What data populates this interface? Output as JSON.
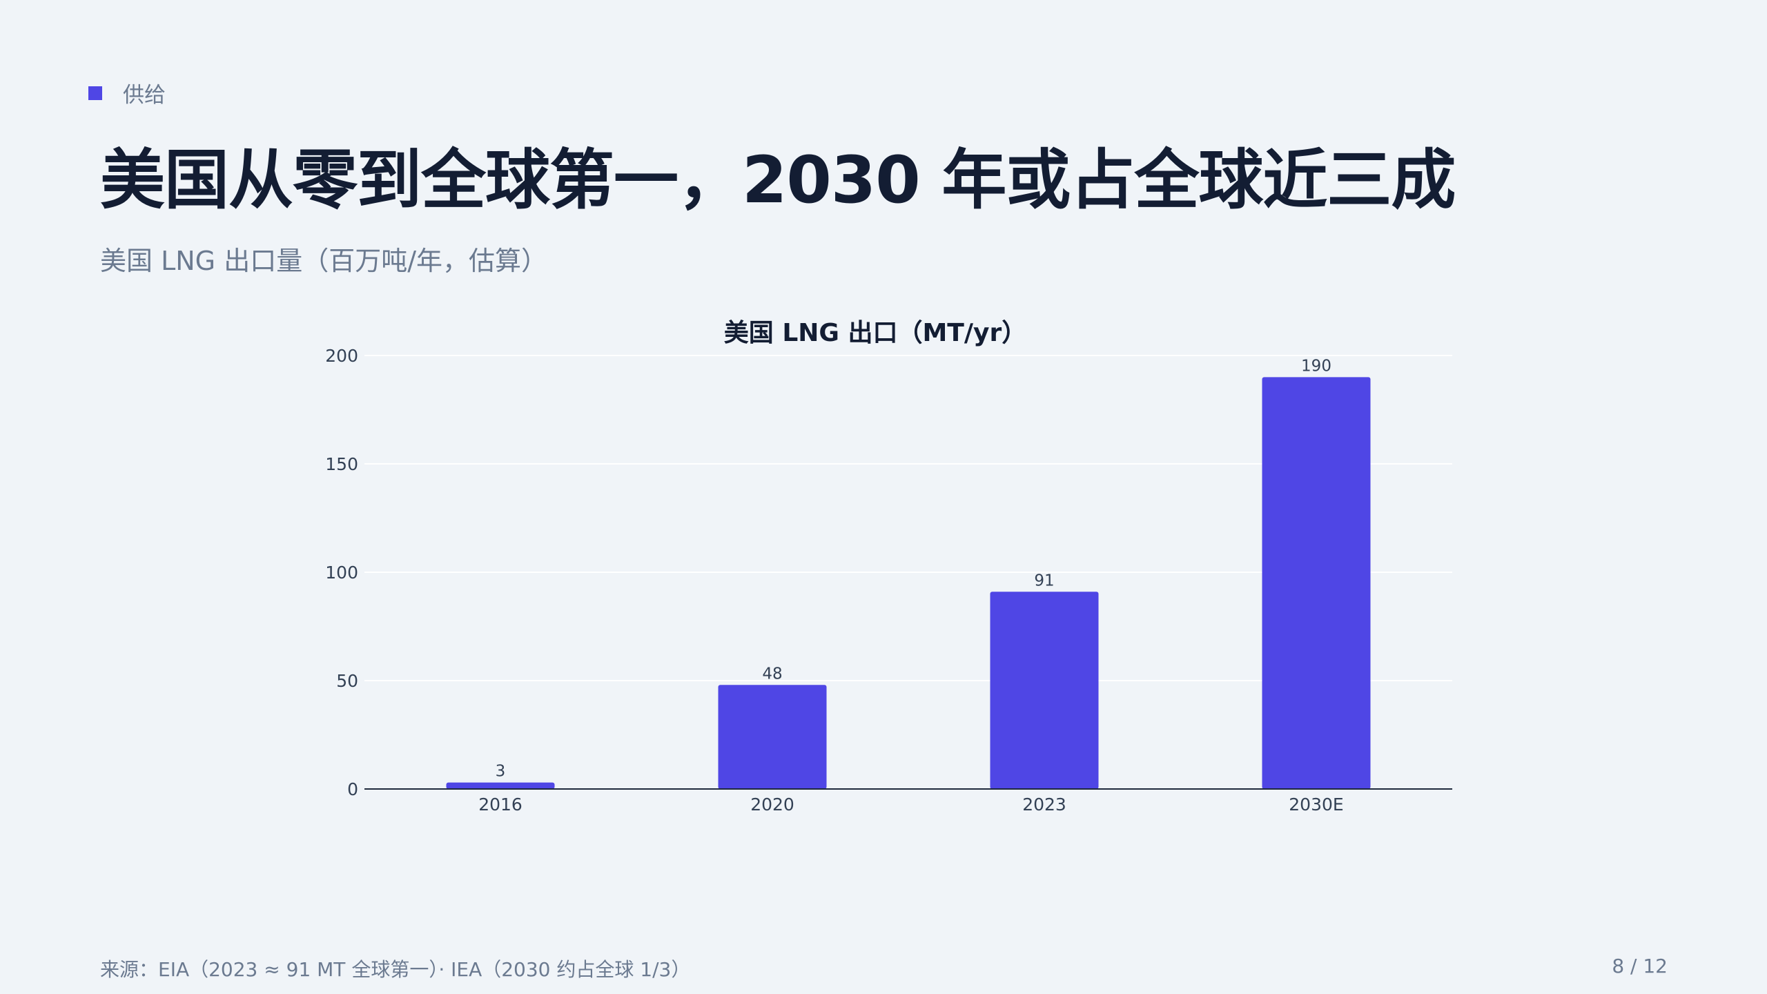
{
  "section": {
    "label": "供给",
    "marker_color": "#4f46e5"
  },
  "headline": "美国从零到全球第一，2030 年或占全球近三成",
  "subheadline": "美国 LNG 出口量（百万吨/年，估算）",
  "chart_data": {
    "type": "bar",
    "title": "美国 LNG 出口（MT/yr）",
    "categories": [
      "2016",
      "2020",
      "2023",
      "2030E"
    ],
    "values": [
      3,
      48,
      91,
      190
    ],
    "data_labels": [
      "3",
      "48",
      "91",
      "190"
    ],
    "ylim": [
      0,
      200
    ],
    "yticks": [
      0,
      50,
      100,
      150,
      200
    ],
    "xlabel": "",
    "ylabel": "",
    "grid": true,
    "legend": "none",
    "bar_color": "#4f46e5"
  },
  "footer": {
    "source": "来源：EIA（2023 ≈ 91 MT 全球第一）· IEA（2030 约占全球 1/3）",
    "page": "8 / 12"
  }
}
